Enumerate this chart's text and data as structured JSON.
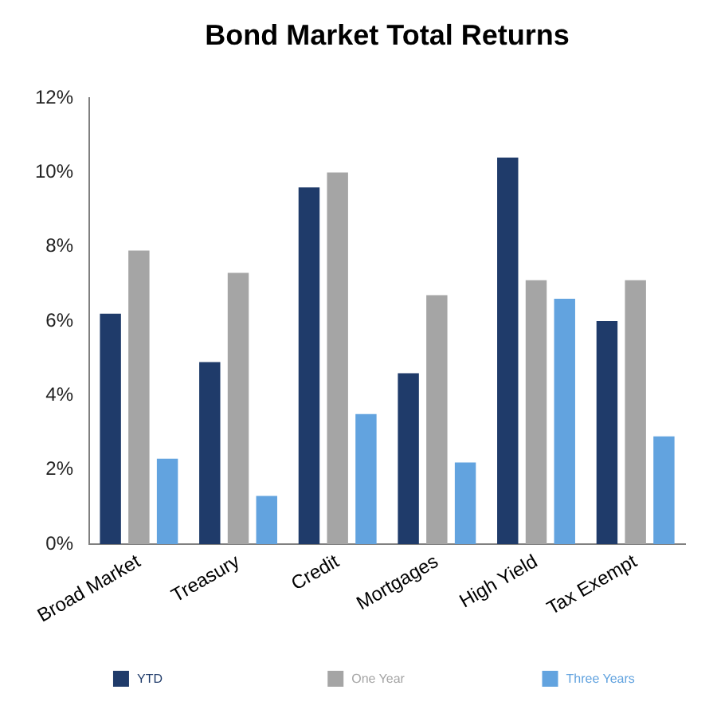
{
  "chart_data": {
    "type": "bar",
    "title": "Bond Market Total Returns",
    "categories": [
      "Broad Market",
      "Treasury",
      "Credit",
      "Mortgages",
      "High Yield",
      "Tax Exempt"
    ],
    "series": [
      {
        "name": "YTD",
        "color": "#1f3b6a",
        "values": [
          6.2,
          4.9,
          9.6,
          4.6,
          10.4,
          6.0
        ]
      },
      {
        "name": "One Year",
        "color": "#a5a5a5",
        "values": [
          7.9,
          7.3,
          10.0,
          6.7,
          7.1,
          7.1
        ]
      },
      {
        "name": "Three Years",
        "color": "#62a3df",
        "values": [
          2.3,
          1.3,
          3.5,
          2.2,
          6.6,
          2.9
        ]
      }
    ],
    "ylim": [
      0,
      12
    ],
    "yticks": [
      {
        "value": 0,
        "label": "0%"
      },
      {
        "value": 2,
        "label": "2%"
      },
      {
        "value": 4,
        "label": "4%"
      },
      {
        "value": 6,
        "label": "6%"
      },
      {
        "value": 8,
        "label": "8%"
      },
      {
        "value": 10,
        "label": "10%"
      },
      {
        "value": 12,
        "label": "12%"
      }
    ],
    "grid": false,
    "legend": "bottom"
  }
}
